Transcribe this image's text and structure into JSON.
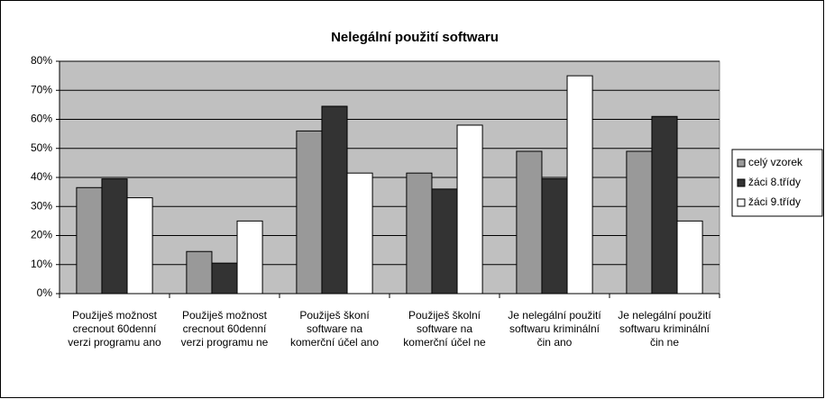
{
  "chart_data": {
    "type": "bar",
    "title": "Nelegální použití softwaru",
    "categories": [
      "Použiješ možnost crecnout 60denní verzi programu ano",
      "Použiješ možnost crecnout 60denní verzi programu ne",
      "Použiješ škoní software na komerční účel ano",
      "Použiješ školní software na komerční účel ne",
      "Je nelegální použití softwaru kriminální čin ano",
      "Je nelegální použití softwaru kriminální čin ne"
    ],
    "series": [
      {
        "name": "celý vzorek",
        "color": "#999999",
        "values": [
          36.5,
          14.5,
          56,
          41.5,
          49,
          49
        ]
      },
      {
        "name": "žáci 8.třídy",
        "color": "#333333",
        "values": [
          39.5,
          10.5,
          64.5,
          36,
          39.5,
          61
        ]
      },
      {
        "name": "žáci 9.třídy",
        "color": "#ffffff",
        "values": [
          33,
          25,
          41.5,
          58,
          75,
          25
        ]
      }
    ],
    "ylim": [
      0,
      80
    ],
    "yticks": [
      {
        "value": 0,
        "label": "0%"
      },
      {
        "value": 10,
        "label": "10%"
      },
      {
        "value": 20,
        "label": "20%"
      },
      {
        "value": 30,
        "label": "30%"
      },
      {
        "value": 40,
        "label": "40%"
      },
      {
        "value": 50,
        "label": "50%"
      },
      {
        "value": 60,
        "label": "60%"
      },
      {
        "value": 70,
        "label": "70%"
      },
      {
        "value": 80,
        "label": "80%"
      }
    ],
    "grid": true,
    "legend": "right",
    "plot_color": "#c0c0c0"
  }
}
